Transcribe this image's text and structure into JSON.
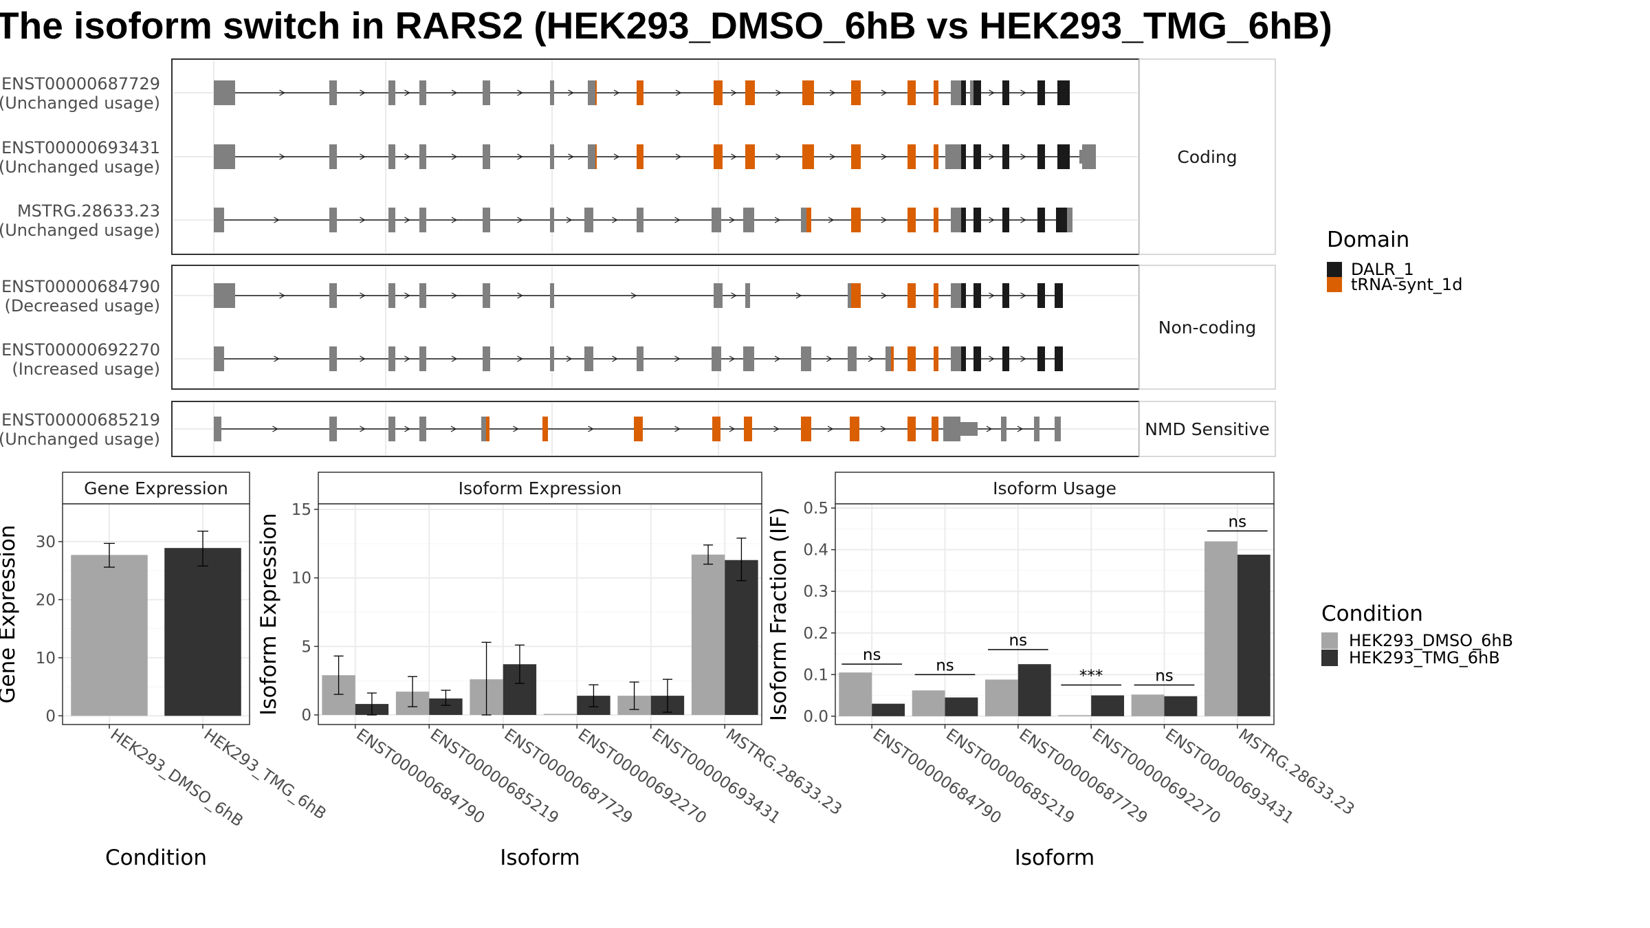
{
  "title": "The isoform switch in RARS2 (HEK293_DMSO_6hB vs HEK293_TMG_6hB)",
  "colors": {
    "DALR_1": "#1a1a1a",
    "tRNA_synt_1d": "#d95f02",
    "exon": "#808080",
    "DMSO": "#a6a6a6",
    "TMG": "#333333"
  },
  "chart_data": [
    {
      "type": "gene_structure",
      "facets": [
        {
          "name": "Coding",
          "transcripts": [
            {
              "id": "ENST00000687729",
              "usage": "(Unchanged usage)"
            },
            {
              "id": "ENST00000693431",
              "usage": "(Unchanged usage)"
            },
            {
              "id": "MSTRG.28633.23",
              "usage": "(Unchanged usage)"
            }
          ]
        },
        {
          "name": "Non-coding",
          "transcripts": [
            {
              "id": "ENST00000684790",
              "usage": "(Decreased usage)"
            },
            {
              "id": "ENST00000692270",
              "usage": "(Increased usage)"
            }
          ]
        },
        {
          "name": "NMD Sensitive",
          "transcripts": [
            {
              "id": "ENST00000685219",
              "usage": "(Unchanged usage)"
            }
          ]
        }
      ],
      "legend": {
        "title": "Domain",
        "entries": [
          "DALR_1",
          "tRNA-synt_1d"
        ]
      }
    },
    {
      "type": "bar",
      "panel": "Gene Expression",
      "xlabel": "Condition",
      "ylabel": "Gene Expression",
      "ylim": [
        -1.5,
        36.5
      ],
      "yticks": [
        0,
        10,
        20,
        30
      ],
      "categories": [
        "HEK293_DMSO_6hB",
        "HEK293_TMG_6hB"
      ],
      "values": [
        27.7,
        28.9
      ],
      "error_low": [
        25.6,
        25.8
      ],
      "error_high": [
        29.7,
        31.8
      ]
    },
    {
      "type": "bar",
      "panel": "Isoform Expression",
      "xlabel": "Isoform",
      "ylabel": "Isoform Expression",
      "ylim": [
        -0.7,
        15.4
      ],
      "yticks": [
        0,
        5,
        10,
        15
      ],
      "categories": [
        "ENST00000684790",
        "ENST00000685219",
        "ENST00000687729",
        "ENST00000692270",
        "ENST00000693431",
        "MSTRG.28633.23"
      ],
      "series": [
        {
          "name": "HEK293_DMSO_6hB",
          "values": [
            2.9,
            1.7,
            2.6,
            0.0,
            1.4,
            11.7
          ],
          "error_low": [
            1.5,
            0.6,
            0.0,
            0.0,
            0.4,
            11.0
          ],
          "error_high": [
            4.3,
            2.8,
            5.3,
            0.0,
            2.4,
            12.4
          ]
        },
        {
          "name": "HEK293_TMG_6hB",
          "values": [
            0.8,
            1.2,
            3.7,
            1.4,
            1.4,
            11.3
          ],
          "error_low": [
            0.0,
            0.7,
            2.3,
            0.6,
            0.2,
            9.8
          ],
          "error_high": [
            1.6,
            1.8,
            5.1,
            2.2,
            2.6,
            12.9
          ]
        }
      ]
    },
    {
      "type": "bar",
      "panel": "Isoform Usage",
      "xlabel": "Isoform",
      "ylabel": "Isoform Fraction (IF)",
      "ylim": [
        -0.02,
        0.51
      ],
      "yticks": [
        "0.0",
        "0.1",
        "0.2",
        "0.3",
        "0.4",
        "0.5"
      ],
      "categories": [
        "ENST00000684790",
        "ENST00000685219",
        "ENST00000687729",
        "ENST00000692270",
        "ENST00000693431",
        "MSTRG.28633.23"
      ],
      "series": [
        {
          "name": "HEK293_DMSO_6hB",
          "values": [
            0.105,
            0.062,
            0.088,
            0.0,
            0.052,
            0.42
          ]
        },
        {
          "name": "HEK293_TMG_6hB",
          "values": [
            0.03,
            0.045,
            0.125,
            0.05,
            0.048,
            0.388
          ]
        }
      ],
      "significance": [
        "ns",
        "ns",
        "ns",
        "***",
        "ns",
        "ns"
      ],
      "sig_level": [
        0.125,
        0.1,
        0.16,
        0.075,
        0.075,
        0.445
      ]
    }
  ],
  "condition_legend": {
    "title": "Condition",
    "entries": [
      "HEK293_DMSO_6hB",
      "HEK293_TMG_6hB"
    ]
  }
}
